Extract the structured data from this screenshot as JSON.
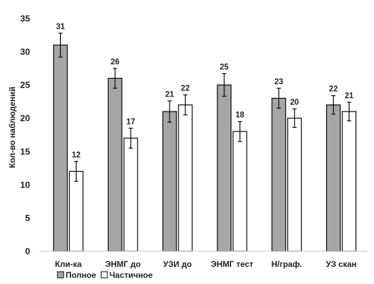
{
  "chart_data": {
    "type": "bar",
    "title": "",
    "xlabel": "",
    "ylabel": "Кол-во наблюдений",
    "ylim": [
      0,
      35
    ],
    "yticks": [
      0,
      5,
      10,
      15,
      20,
      25,
      30,
      35
    ],
    "grid": false,
    "legend_position": "bottom-left",
    "categories": [
      "Кли-ка",
      "ЭНМГ до",
      "УЗИ до",
      "ЭНМГ тест",
      "Н/граф.",
      "УЗ скан"
    ],
    "series": [
      {
        "name": "Полное",
        "color": "#a6a6a6",
        "values": [
          31,
          26,
          21,
          25,
          23,
          22
        ],
        "error": [
          1.8,
          1.5,
          1.6,
          1.7,
          1.5,
          1.4
        ]
      },
      {
        "name": "Частичное",
        "color": "#ffffff",
        "values": [
          12,
          17,
          22,
          18,
          20,
          21
        ],
        "error": [
          1.5,
          1.5,
          1.5,
          1.5,
          1.4,
          1.4
        ]
      }
    ],
    "data_labels": true
  }
}
